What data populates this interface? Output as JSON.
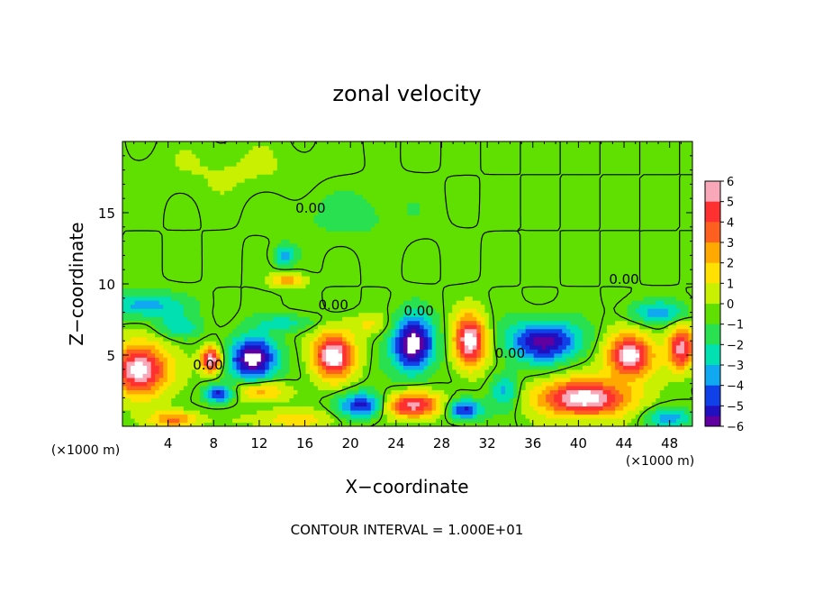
{
  "chart_data": {
    "type": "heatmap",
    "title": "zonal velocity",
    "xlabel": "X−coordinate",
    "ylabel": "Z−coordinate",
    "x_unit_left": "(×1000 m)",
    "x_unit_right": "(×1000 m)",
    "footer": "CONTOUR INTERVAL = 1.000E+01",
    "xlim": [
      0,
      50
    ],
    "ylim": [
      0,
      20
    ],
    "x_ticks": [
      4,
      8,
      12,
      16,
      20,
      24,
      28,
      32,
      36,
      40,
      44,
      48
    ],
    "y_ticks": [
      5,
      10,
      15
    ],
    "grid": false,
    "colorbar": {
      "placement": "right",
      "min": -6,
      "max": 6,
      "ticks": [
        "6",
        "5",
        "4",
        "3",
        "2",
        "1",
        "0",
        "−1",
        "−2",
        "−3",
        "−4",
        "−5",
        "−6"
      ],
      "colors": [
        "#f8a8b8",
        "#ff3030",
        "#ff6020",
        "#ffa800",
        "#ffe000",
        "#c8f000",
        "#60e000",
        "#28e050",
        "#00e0b0",
        "#10a8f0",
        "#1040e8",
        "#2010c0",
        "#6000a0"
      ]
    },
    "contour_labels": [
      {
        "text": "0.00",
        "x": 16.5,
        "y": 15.0
      },
      {
        "text": "0.00",
        "x": 18.5,
        "y": 8.2
      },
      {
        "text": "0.00",
        "x": 26.0,
        "y": 7.8
      },
      {
        "text": "0.00",
        "x": 34.0,
        "y": 4.8
      },
      {
        "text": "0.00",
        "x": 44.0,
        "y": 10.0
      },
      {
        "text": "0.00",
        "x": 7.5,
        "y": 4.0
      }
    ],
    "features": [
      {
        "x": 1.5,
        "y": 4.0,
        "sx": 2.5,
        "sy": 1.8,
        "v": 7
      },
      {
        "x": 2.0,
        "y": 8.5,
        "sx": 3.5,
        "sy": 0.9,
        "v": -3
      },
      {
        "x": 5.0,
        "y": 7.0,
        "sx": 2.0,
        "sy": 0.8,
        "v": -2
      },
      {
        "x": 7.8,
        "y": 4.7,
        "sx": 0.9,
        "sy": 0.9,
        "v": 7
      },
      {
        "x": 8.5,
        "y": 2.3,
        "sx": 1.3,
        "sy": 0.6,
        "v": -5
      },
      {
        "x": 11.5,
        "y": 4.8,
        "sx": 2.0,
        "sy": 1.5,
        "v": -7
      },
      {
        "x": 12.0,
        "y": 2.5,
        "sx": 2.5,
        "sy": 0.7,
        "v": 3
      },
      {
        "x": 14.2,
        "y": 12.0,
        "sx": 0.9,
        "sy": 0.7,
        "v": -3
      },
      {
        "x": 14.5,
        "y": 10.3,
        "sx": 1.5,
        "sy": 0.5,
        "v": 3
      },
      {
        "x": 14.5,
        "y": 7.3,
        "sx": 2.5,
        "sy": 0.6,
        "v": -2
      },
      {
        "x": 15.0,
        "y": 0.5,
        "sx": 4.0,
        "sy": 0.7,
        "v": 2
      },
      {
        "x": 18.5,
        "y": 5.0,
        "sx": 1.8,
        "sy": 1.6,
        "v": 7
      },
      {
        "x": 21.5,
        "y": 7.2,
        "sx": 2.0,
        "sy": 0.7,
        "v": 1.5
      },
      {
        "x": 21.0,
        "y": 1.5,
        "sx": 2.0,
        "sy": 0.9,
        "v": -5
      },
      {
        "x": 25.5,
        "y": 5.8,
        "sx": 1.8,
        "sy": 1.9,
        "v": -7
      },
      {
        "x": 25.5,
        "y": 1.5,
        "sx": 2.5,
        "sy": 0.9,
        "v": 6
      },
      {
        "x": 30.5,
        "y": 6.0,
        "sx": 1.4,
        "sy": 1.8,
        "v": 7
      },
      {
        "x": 30.0,
        "y": 1.2,
        "sx": 1.5,
        "sy": 0.7,
        "v": -5
      },
      {
        "x": 37.0,
        "y": 6.0,
        "sx": 3.0,
        "sy": 1.4,
        "v": -6
      },
      {
        "x": 40.5,
        "y": 2.0,
        "sx": 4.0,
        "sy": 1.3,
        "v": 7
      },
      {
        "x": 44.5,
        "y": 5.0,
        "sx": 2.0,
        "sy": 1.5,
        "v": 7
      },
      {
        "x": 47.0,
        "y": 8.0,
        "sx": 2.5,
        "sy": 0.8,
        "v": -3
      },
      {
        "x": 49.0,
        "y": 5.5,
        "sx": 1.2,
        "sy": 1.5,
        "v": 6
      },
      {
        "x": 48.0,
        "y": 0.6,
        "sx": 2.0,
        "sy": 0.7,
        "v": -3
      },
      {
        "x": 4.5,
        "y": 0.5,
        "sx": 2.0,
        "sy": 0.6,
        "v": 4
      },
      {
        "x": 33.5,
        "y": 2.5,
        "sx": 1.2,
        "sy": 1.2,
        "v": -3
      },
      {
        "x": 20.0,
        "y": 15.0,
        "sx": 6.0,
        "sy": 2.0,
        "v": -0.8
      },
      {
        "x": 10.0,
        "y": 18.0,
        "sx": 8.0,
        "sy": 2.0,
        "v": 0.6
      }
    ]
  }
}
